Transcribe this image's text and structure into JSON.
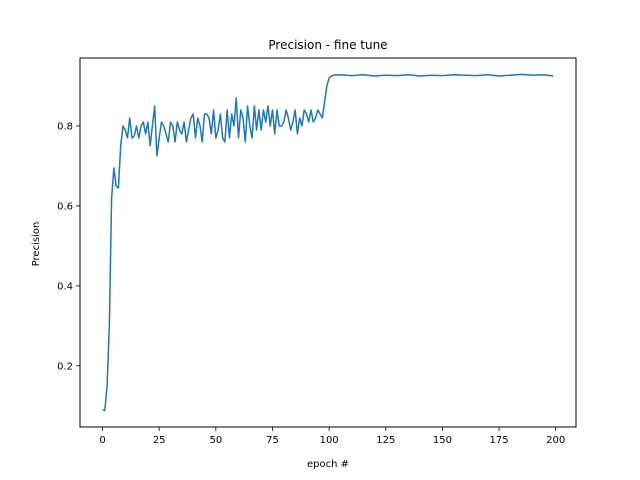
{
  "chart_data": {
    "type": "line",
    "title": "Precision - fine tune",
    "xlabel": "epoch #",
    "ylabel": "Precision",
    "xlim": [
      -9.95,
      208.95
    ],
    "ylim": [
      0.047,
      0.97
    ],
    "xticks": [
      0,
      25,
      50,
      75,
      100,
      125,
      150,
      175,
      200
    ],
    "yticks": [
      0.2,
      0.4,
      0.6,
      0.8
    ],
    "grid": false,
    "series": [
      {
        "color": "#1f77b4",
        "x": [
          0,
          1,
          2,
          3,
          4,
          5,
          6,
          7,
          8,
          9,
          10,
          11,
          12,
          13,
          14,
          15,
          16,
          17,
          18,
          19,
          20,
          21,
          22,
          23,
          24,
          25,
          26,
          27,
          28,
          29,
          30,
          31,
          32,
          33,
          34,
          35,
          36,
          37,
          38,
          39,
          40,
          41,
          42,
          43,
          44,
          45,
          46,
          47,
          48,
          49,
          50,
          51,
          52,
          53,
          54,
          55,
          56,
          57,
          58,
          59,
          60,
          61,
          62,
          63,
          64,
          65,
          66,
          67,
          68,
          69,
          70,
          71,
          72,
          73,
          74,
          75,
          76,
          77,
          78,
          79,
          80,
          81,
          82,
          83,
          84,
          85,
          86,
          87,
          88,
          89,
          90,
          91,
          92,
          93,
          94,
          95,
          96,
          97,
          98,
          99,
          100,
          101,
          102,
          103,
          104,
          105,
          110,
          115,
          120,
          125,
          130,
          135,
          140,
          145,
          150,
          155,
          160,
          165,
          170,
          175,
          180,
          185,
          190,
          195,
          199
        ],
        "y": [
          0.09,
          0.088,
          0.15,
          0.3,
          0.62,
          0.695,
          0.65,
          0.645,
          0.75,
          0.8,
          0.79,
          0.77,
          0.82,
          0.77,
          0.775,
          0.8,
          0.77,
          0.8,
          0.81,
          0.78,
          0.81,
          0.75,
          0.8,
          0.85,
          0.725,
          0.77,
          0.81,
          0.8,
          0.78,
          0.76,
          0.81,
          0.8,
          0.76,
          0.81,
          0.79,
          0.78,
          0.81,
          0.76,
          0.79,
          0.82,
          0.83,
          0.77,
          0.82,
          0.8,
          0.76,
          0.83,
          0.83,
          0.82,
          0.78,
          0.84,
          0.77,
          0.79,
          0.83,
          0.77,
          0.76,
          0.84,
          0.77,
          0.83,
          0.8,
          0.87,
          0.77,
          0.84,
          0.82,
          0.76,
          0.85,
          0.8,
          0.77,
          0.85,
          0.79,
          0.84,
          0.79,
          0.84,
          0.81,
          0.85,
          0.8,
          0.84,
          0.78,
          0.84,
          0.8,
          0.8,
          0.81,
          0.84,
          0.82,
          0.79,
          0.81,
          0.84,
          0.78,
          0.82,
          0.8,
          0.84,
          0.83,
          0.81,
          0.84,
          0.81,
          0.82,
          0.84,
          0.83,
          0.82,
          0.86,
          0.9,
          0.92,
          0.925,
          0.927,
          0.928,
          0.927,
          0.928,
          0.926,
          0.928,
          0.925,
          0.927,
          0.926,
          0.928,
          0.925,
          0.927,
          0.926,
          0.928,
          0.927,
          0.926,
          0.928,
          0.925,
          0.927,
          0.929,
          0.927,
          0.928,
          0.925
        ]
      }
    ]
  }
}
